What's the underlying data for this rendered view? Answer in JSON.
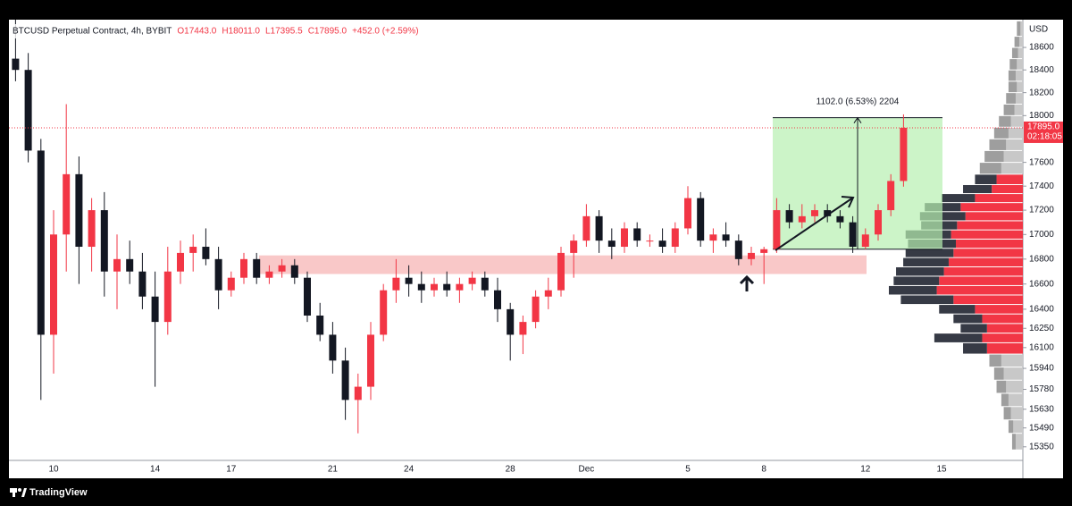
{
  "chart_data": {
    "type": "candlestick",
    "title": "BTCUSD Perpetual Contract, 4h, BYBIT",
    "ohlc_header": [
      "O17443.0",
      "H18011.0",
      "L17395.5",
      "C17895.0",
      "+452.0 (+2.59%)"
    ],
    "currency": "USD",
    "last_price": {
      "value": 17895,
      "label": "17895.0"
    },
    "countdown": "02:18:05",
    "up_color": "#f23645",
    "down_color": "#131722",
    "log_scale": true,
    "grid": false,
    "ylim": [
      15250,
      18850
    ],
    "yticks": [
      18600,
      18400,
      18200,
      18000,
      17600,
      17400,
      17200,
      17000,
      16800,
      16600,
      16400,
      16250,
      16100,
      15940,
      15780,
      15630,
      15490,
      15350
    ],
    "categories": [
      null,
      null,
      null,
      "10",
      null,
      null,
      null,
      null,
      null,
      null,
      null,
      "14",
      null,
      null,
      null,
      null,
      null,
      "17",
      null,
      null,
      null,
      null,
      null,
      null,
      null,
      "21",
      null,
      null,
      null,
      null,
      null,
      "24",
      null,
      null,
      null,
      null,
      null,
      null,
      null,
      "28",
      null,
      null,
      null,
      null,
      null,
      "Dec",
      null,
      null,
      null,
      null,
      null,
      null,
      null,
      "5",
      null,
      null,
      null,
      null,
      null,
      "8",
      null,
      null,
      null,
      null,
      null,
      null,
      null,
      "12",
      null,
      null,
      null,
      null,
      null,
      "15",
      null,
      null,
      null,
      null,
      null,
      null
    ],
    "ohlc": [
      [
        18500,
        18850,
        18300,
        18400
      ],
      [
        18400,
        18550,
        17600,
        17700
      ],
      [
        17700,
        17800,
        15700,
        16200
      ],
      [
        16200,
        17200,
        15900,
        17000
      ],
      [
        17000,
        18100,
        16700,
        17500
      ],
      [
        17500,
        17650,
        16600,
        16900
      ],
      [
        16900,
        17300,
        16700,
        17200
      ],
      [
        17200,
        17350,
        16500,
        16700
      ],
      [
        16700,
        17000,
        16400,
        16800
      ],
      [
        16800,
        16950,
        16600,
        16700
      ],
      [
        16700,
        16850,
        16400,
        16500
      ],
      [
        16500,
        16700,
        15800,
        16300
      ],
      [
        16300,
        16900,
        16200,
        16700
      ],
      [
        16700,
        16950,
        16600,
        16850
      ],
      [
        16850,
        17000,
        16700,
        16900
      ],
      [
        16900,
        17050,
        16750,
        16800
      ],
      [
        16800,
        16900,
        16400,
        16550
      ],
      [
        16550,
        16700,
        16500,
        16650
      ],
      [
        16650,
        16850,
        16600,
        16800
      ],
      [
        16800,
        16850,
        16600,
        16650
      ],
      [
        16650,
        16750,
        16600,
        16700
      ],
      [
        16700,
        16800,
        16650,
        16750
      ],
      [
        16750,
        16800,
        16600,
        16650
      ],
      [
        16650,
        16700,
        16300,
        16350
      ],
      [
        16350,
        16450,
        16150,
        16200
      ],
      [
        16200,
        16300,
        15900,
        16000
      ],
      [
        16000,
        16100,
        15550,
        15700
      ],
      [
        15700,
        15900,
        15450,
        15800
      ],
      [
        15800,
        16300,
        15700,
        16200
      ],
      [
        16200,
        16600,
        16150,
        16550
      ],
      [
        16550,
        16800,
        16450,
        16650
      ],
      [
        16650,
        16750,
        16500,
        16600
      ],
      [
        16600,
        16700,
        16450,
        16550
      ],
      [
        16550,
        16650,
        16500,
        16600
      ],
      [
        16600,
        16700,
        16500,
        16550
      ],
      [
        16550,
        16650,
        16450,
        16600
      ],
      [
        16600,
        16700,
        16550,
        16650
      ],
      [
        16650,
        16700,
        16500,
        16550
      ],
      [
        16550,
        16650,
        16300,
        16400
      ],
      [
        16400,
        16450,
        16000,
        16200
      ],
      [
        16200,
        16350,
        16050,
        16300
      ],
      [
        16300,
        16550,
        16250,
        16500
      ],
      [
        16500,
        16650,
        16400,
        16550
      ],
      [
        16550,
        16900,
        16500,
        16850
      ],
      [
        16850,
        17000,
        16650,
        16950
      ],
      [
        16950,
        17250,
        16900,
        17150
      ],
      [
        17150,
        17200,
        16850,
        16950
      ],
      [
        16950,
        17050,
        16800,
        16900
      ],
      [
        16900,
        17100,
        16850,
        17050
      ],
      [
        17050,
        17100,
        16900,
        16950
      ],
      [
        16950,
        17000,
        16900,
        16950
      ],
      [
        16950,
        17050,
        16850,
        16900
      ],
      [
        16900,
        17100,
        16850,
        17050
      ],
      [
        17050,
        17400,
        17000,
        17300
      ],
      [
        17300,
        17350,
        16900,
        16950
      ],
      [
        16950,
        17050,
        16850,
        17000
      ],
      [
        17000,
        17100,
        16900,
        16950
      ],
      [
        16950,
        17000,
        16750,
        16800
      ],
      [
        16800,
        16900,
        16750,
        16850
      ],
      [
        16850,
        16900,
        16600,
        16880
      ],
      [
        16880,
        17300,
        16850,
        17200
      ],
      [
        17200,
        17250,
        17050,
        17100
      ],
      [
        17100,
        17250,
        17050,
        17150
      ],
      [
        17150,
        17250,
        17100,
        17200
      ],
      [
        17200,
        17250,
        17100,
        17150
      ],
      [
        17150,
        17200,
        17050,
        17100
      ],
      [
        17100,
        17150,
        16850,
        16900
      ],
      [
        16900,
        17050,
        16880,
        17000
      ],
      [
        17000,
        17250,
        16950,
        17200
      ],
      [
        17200,
        17500,
        17150,
        17443
      ],
      [
        17443,
        18011,
        17395.5,
        17895
      ],
      null,
      null,
      null,
      null,
      null,
      null,
      null,
      null,
      null
    ],
    "zone": {
      "low": 16680,
      "high": 16830
    },
    "measure": {
      "label": "1102.0 (6.53%) 2204",
      "low": 16880,
      "high": 17982
    },
    "volume_profile": {
      "value_area": [
        16050,
        17450
      ],
      "prices": [
        18750,
        18650,
        18550,
        18450,
        18350,
        18250,
        18150,
        18050,
        17950,
        17850,
        17750,
        17650,
        17550,
        17450,
        17375,
        17300,
        17225,
        17150,
        17075,
        17000,
        16925,
        16850,
        16775,
        16700,
        16625,
        16550,
        16475,
        16400,
        16325,
        16250,
        16175,
        16100,
        16000,
        15900,
        15800,
        15700,
        15600,
        15500,
        15400
      ],
      "up": [
        2,
        3,
        4,
        5,
        6,
        5,
        6,
        7,
        10,
        12,
        14,
        16,
        18,
        22,
        26,
        40,
        52,
        48,
        55,
        60,
        56,
        58,
        62,
        66,
        70,
        72,
        58,
        40,
        34,
        30,
        34,
        30,
        18,
        16,
        14,
        12,
        10,
        8,
        6
      ],
      "down": [
        3,
        4,
        5,
        6,
        6,
        7,
        8,
        9,
        10,
        12,
        14,
        16,
        18,
        18,
        24,
        28,
        30,
        38,
        30,
        38,
        40,
        40,
        38,
        40,
        38,
        40,
        44,
        30,
        24,
        22,
        40,
        20,
        10,
        8,
        8,
        6,
        6,
        4,
        3
      ]
    }
  },
  "footer": {
    "brand": "TradingView"
  }
}
